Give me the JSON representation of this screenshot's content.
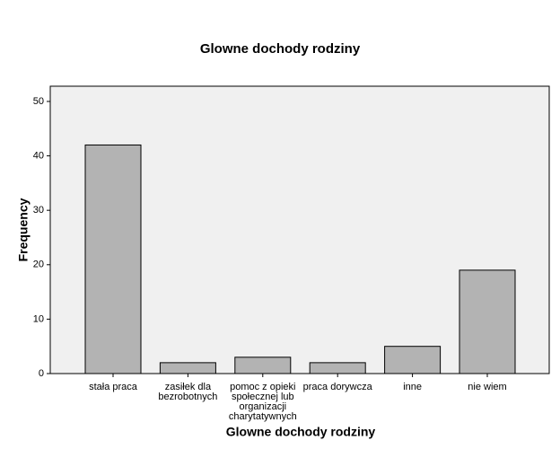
{
  "chart_data": {
    "type": "bar",
    "title": "Glowne dochody rodziny",
    "x_label": "Glowne dochody rodziny",
    "y_label": "Frequency",
    "categories": [
      "stała praca",
      "zasiłek dla bezrobotnych",
      "pomoc z opieki społecznej lub organizacji charytatywnych",
      "praca dorywcza",
      "inne",
      "nie wiem"
    ],
    "values": [
      42,
      2,
      3,
      2,
      5,
      19
    ],
    "color": "#b3b3b3",
    "ylim": [
      0,
      52.8
    ],
    "yticks": [
      0,
      10,
      20,
      30,
      40,
      50
    ]
  }
}
